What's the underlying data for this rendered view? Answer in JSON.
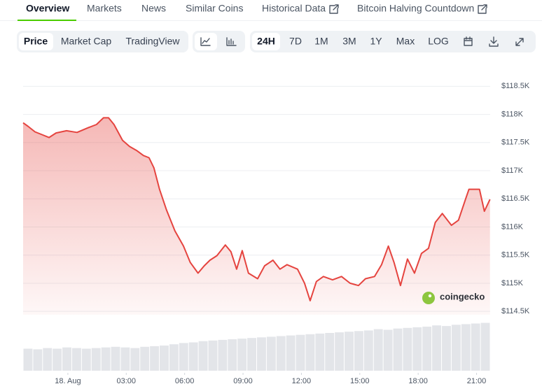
{
  "tabs": [
    "Overview",
    "Markets",
    "News",
    "Similar Coins",
    "Historical Data",
    "Bitcoin Halving Countdown"
  ],
  "chart_options": [
    "Price",
    "Market Cap",
    "TradingView"
  ],
  "ranges": [
    "24H",
    "7D",
    "1M",
    "3M",
    "1Y",
    "Max",
    "LOG"
  ],
  "watermark": "coingecko",
  "chart_data": {
    "type": "line",
    "x": [
      -2.3,
      -2.05,
      -1.69,
      -1.33,
      -0.97,
      -0.61,
      -0.07,
      0.47,
      1.01,
      1.47,
      1.83,
      2.09,
      2.37,
      2.81,
      3.17,
      3.53,
      3.88,
      4.17,
      4.42,
      4.71,
      5.07,
      5.5,
      5.94,
      6.29,
      6.69,
      7.01,
      7.3,
      7.66,
      8.09,
      8.38,
      8.67,
      8.96,
      9.28,
      9.75,
      10.11,
      10.54,
      10.9,
      11.26,
      11.8,
      12.16,
      12.45,
      12.77,
      13.13,
      13.6,
      14.06,
      14.5,
      14.93,
      15.29,
      15.76,
      16.12,
      16.47,
      16.76,
      17.09,
      17.45,
      17.81,
      18.17,
      18.53,
      18.88,
      19.24,
      19.71,
      20.07,
      20.43,
      20.61,
      21.15,
      21.4,
      21.69
    ],
    "series": [
      {
        "color": "#e5443f",
        "values": [
          117850,
          117790,
          117690,
          117640,
          117590,
          117670,
          117710,
          117680,
          117760,
          117820,
          117940,
          117940,
          117820,
          117540,
          117430,
          117360,
          117270,
          117230,
          117050,
          116670,
          116300,
          115930,
          115660,
          115370,
          115180,
          115310,
          115410,
          115490,
          115680,
          115560,
          115250,
          115580,
          115180,
          115080,
          115310,
          115410,
          115250,
          115330,
          115250,
          115000,
          114690,
          115030,
          115120,
          115060,
          115120,
          115000,
          114960,
          115080,
          115120,
          115330,
          115660,
          115370,
          114960,
          115430,
          115180,
          115530,
          115620,
          116080,
          116240,
          116030,
          116120,
          116490,
          116670,
          116670,
          116280,
          116490
        ]
      }
    ],
    "volume": {
      "color": "#e3e5e9",
      "ylim": [
        0,
        100
      ],
      "values": [
        35,
        34,
        36,
        35,
        37,
        36,
        35,
        36,
        37,
        38,
        37,
        36,
        38,
        39,
        40,
        42,
        44,
        45,
        47,
        48,
        49,
        50,
        51,
        52,
        53,
        54,
        55,
        56,
        57,
        58,
        59,
        60,
        61,
        62,
        63,
        64,
        66,
        65,
        67,
        68,
        69,
        70,
        72,
        71,
        73,
        74,
        75,
        76
      ]
    },
    "xlim": [
      -2.3,
      21.7
    ],
    "xticks": [
      {
        "value": 0,
        "label": "18. Aug"
      },
      {
        "value": 3,
        "label": "03:00"
      },
      {
        "value": 6,
        "label": "06:00"
      },
      {
        "value": 9,
        "label": "09:00"
      },
      {
        "value": 12,
        "label": "12:00"
      },
      {
        "value": 15,
        "label": "15:00"
      },
      {
        "value": 18,
        "label": "18:00"
      },
      {
        "value": 21,
        "label": "21:00"
      }
    ],
    "ylim": [
      114440,
      118790
    ],
    "yticks": [
      {
        "value": 114500,
        "label": "$114.5K"
      },
      {
        "value": 115000,
        "label": "$115K"
      },
      {
        "value": 115500,
        "label": "$115.5K"
      },
      {
        "value": 116000,
        "label": "$116K"
      },
      {
        "value": 116500,
        "label": "$116.5K"
      },
      {
        "value": 117000,
        "label": "$117K"
      },
      {
        "value": 117500,
        "label": "$117.5K"
      },
      {
        "value": 118000,
        "label": "$118K"
      },
      {
        "value": 118500,
        "label": "$118.5K"
      }
    ],
    "grid": true
  }
}
